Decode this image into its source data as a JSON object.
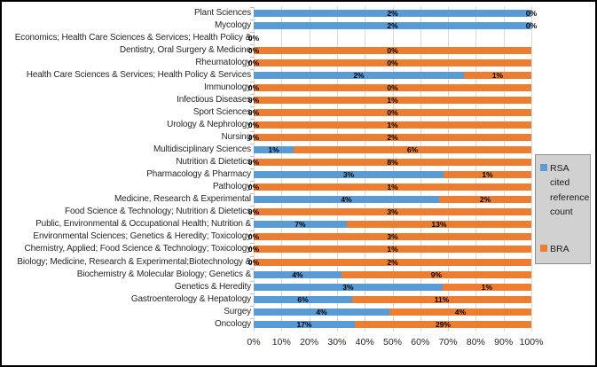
{
  "colors": {
    "rsa": "#5b9bd5",
    "bra": "#ed7d31",
    "legend_bg": "#d2d1d1",
    "legend_border": "#8f8f8f",
    "gridline": "#d9d9d9"
  },
  "legend": {
    "items": [
      {
        "label": "RSA cited reference count",
        "color_key": "rsa"
      },
      {
        "label": "BRA",
        "color_key": "bra"
      }
    ]
  },
  "chart_data": {
    "type": "bar",
    "orientation": "horizontal",
    "stacking": "100%",
    "title": "",
    "xlabel": "",
    "ylabel": "",
    "x_ticks": [
      "0%",
      "10%",
      "20%",
      "30%",
      "40%",
      "50%",
      "60%",
      "70%",
      "80%",
      "90%",
      "100%"
    ],
    "x_range": [
      0,
      100
    ],
    "grid": true,
    "legend_position": "right",
    "series_names": [
      "RSA cited reference count",
      "BRA"
    ],
    "rows": [
      {
        "category": "Plant Sciences",
        "rsa": "2%",
        "bra": "0%",
        "rsa_share": 100,
        "bra_share": 0
      },
      {
        "category": "Mycology",
        "rsa": "2%",
        "bra": "0%",
        "rsa_share": 100,
        "bra_share": 0
      },
      {
        "category": "Economics; Health Care Sciences & Services; Health Policy &",
        "rsa": "0%",
        "bra": null,
        "rsa_share": 0,
        "bra_share": 0
      },
      {
        "category": "Dentistry, Oral Surgery & Medicine",
        "rsa": "0%",
        "bra": "0%",
        "rsa_share": 0,
        "bra_share": 100
      },
      {
        "category": "Rheumatology",
        "rsa": "0%",
        "bra": "0%",
        "rsa_share": 0,
        "bra_share": 100
      },
      {
        "category": "Health Care Sciences & Services; Health Policy & Services",
        "rsa": "2%",
        "bra": "1%",
        "rsa_share": 75.7,
        "bra_share": 24.3
      },
      {
        "category": "Immunology",
        "rsa": "0%",
        "bra": "0%",
        "rsa_share": 0,
        "bra_share": 100
      },
      {
        "category": "Infectious Diseases",
        "rsa": "0%",
        "bra": "1%",
        "rsa_share": 0,
        "bra_share": 100
      },
      {
        "category": "Sport Sciences",
        "rsa": "0%",
        "bra": "0%",
        "rsa_share": 0,
        "bra_share": 100
      },
      {
        "category": "Urology & Nephrology",
        "rsa": "0%",
        "bra": "1%",
        "rsa_share": 0,
        "bra_share": 100
      },
      {
        "category": "Nursing",
        "rsa": "0%",
        "bra": "2%",
        "rsa_share": 0,
        "bra_share": 100
      },
      {
        "category": "Multidisciplinary Sciences",
        "rsa": "1%",
        "bra": "6%",
        "rsa_share": 14.4,
        "bra_share": 85.6
      },
      {
        "category": "Nutrition & Dietetics",
        "rsa": "0%",
        "bra": "8%",
        "rsa_share": 0,
        "bra_share": 100
      },
      {
        "category": "Pharmacology & Pharmacy",
        "rsa": "3%",
        "bra": "1%",
        "rsa_share": 68.4,
        "bra_share": 31.6
      },
      {
        "category": "Pathology",
        "rsa": "0%",
        "bra": "1%",
        "rsa_share": 0,
        "bra_share": 100
      },
      {
        "category": "Medicine, Research & Experimental",
        "rsa": "4%",
        "bra": "2%",
        "rsa_share": 66.8,
        "bra_share": 33.2
      },
      {
        "category": "Food Science & Technology; Nutrition & Dietetics",
        "rsa": "0%",
        "bra": "3%",
        "rsa_share": 0,
        "bra_share": 100
      },
      {
        "category": "Public, Environmental & Occupational Health; Nutrition &",
        "rsa": "7%",
        "bra": "13%",
        "rsa_share": 33.5,
        "bra_share": 66.5
      },
      {
        "category": "Environmental Sciences; Genetics & Heredity; Toxicology",
        "rsa": "0%",
        "bra": "3%",
        "rsa_share": 0,
        "bra_share": 100
      },
      {
        "category": "Chemistry, Applied; Food Science & Technology; Toxicology",
        "rsa": "0%",
        "bra": "1%",
        "rsa_share": 0,
        "bra_share": 100
      },
      {
        "category": "Biology; Medicine, Research & Experimental;Biotechnology &",
        "rsa": "0%",
        "bra": "2%",
        "rsa_share": 0,
        "bra_share": 100
      },
      {
        "category": "Biochemistry & Molecular Biology; Genetics &",
        "rsa": "4%",
        "bra": "9%",
        "rsa_share": 31.6,
        "bra_share": 68.4
      },
      {
        "category": "Genetics & Heredity",
        "rsa": "3%",
        "bra": "1%",
        "rsa_share": 68.0,
        "bra_share": 32.0
      },
      {
        "category": "Gastroenterology & Hepatology",
        "rsa": "6%",
        "bra": "11%",
        "rsa_share": 35.5,
        "bra_share": 64.5
      },
      {
        "category": "Surgey",
        "rsa": "4%",
        "bra": "4%",
        "rsa_share": 48.9,
        "bra_share": 51.1
      },
      {
        "category": "Oncology",
        "rsa": "17%",
        "bra": "29%",
        "rsa_share": 36.4,
        "bra_share": 63.6
      }
    ]
  }
}
